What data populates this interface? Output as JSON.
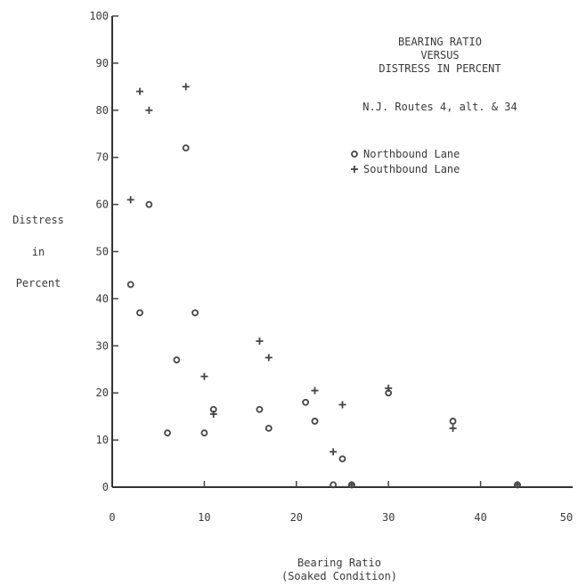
{
  "chart_data": {
    "type": "scatter",
    "title": [
      "BEARING RATIO",
      "VERSUS",
      "DISTRESS IN PERCENT"
    ],
    "subtitle": "N.J. Routes 4, alt. & 34",
    "xlabel": [
      "Bearing Ratio",
      "(Soaked Condition)"
    ],
    "ylabel": [
      "Distress",
      "in",
      "Percent"
    ],
    "xlim": [
      0,
      50
    ],
    "ylim": [
      0,
      100
    ],
    "xticks": [
      "0",
      "10",
      "20",
      "30",
      "40",
      "50"
    ],
    "yticks": [
      "0",
      "10",
      "20",
      "30",
      "40",
      "50",
      "60",
      "70",
      "80",
      "90",
      "100"
    ],
    "grid": false,
    "legend_position": "top-right",
    "series": [
      {
        "name": "Northbound Lane",
        "marker": "circle",
        "points": [
          [
            2,
            43
          ],
          [
            3,
            37
          ],
          [
            4,
            60
          ],
          [
            6,
            11.5
          ],
          [
            7,
            27
          ],
          [
            8,
            72
          ],
          [
            9,
            37
          ],
          [
            10,
            11.5
          ],
          [
            11,
            16.5
          ],
          [
            16,
            16.5
          ],
          [
            17,
            12.5
          ],
          [
            21,
            18
          ],
          [
            22,
            14
          ],
          [
            24,
            0.5
          ],
          [
            25,
            6
          ],
          [
            26,
            0.5
          ],
          [
            30,
            20
          ],
          [
            37,
            14
          ],
          [
            44,
            0.5
          ]
        ]
      },
      {
        "name": "Southbound Lane",
        "marker": "plus",
        "points": [
          [
            2,
            61
          ],
          [
            3,
            84
          ],
          [
            4,
            80
          ],
          [
            8,
            85
          ],
          [
            10,
            23.5
          ],
          [
            11,
            15.5
          ],
          [
            16,
            31
          ],
          [
            17,
            27.5
          ],
          [
            22,
            20.5
          ],
          [
            24,
            7.5
          ],
          [
            25,
            17.5
          ],
          [
            26,
            0.5
          ],
          [
            30,
            21
          ],
          [
            37,
            12.5
          ],
          [
            44,
            0.5
          ]
        ]
      }
    ]
  }
}
